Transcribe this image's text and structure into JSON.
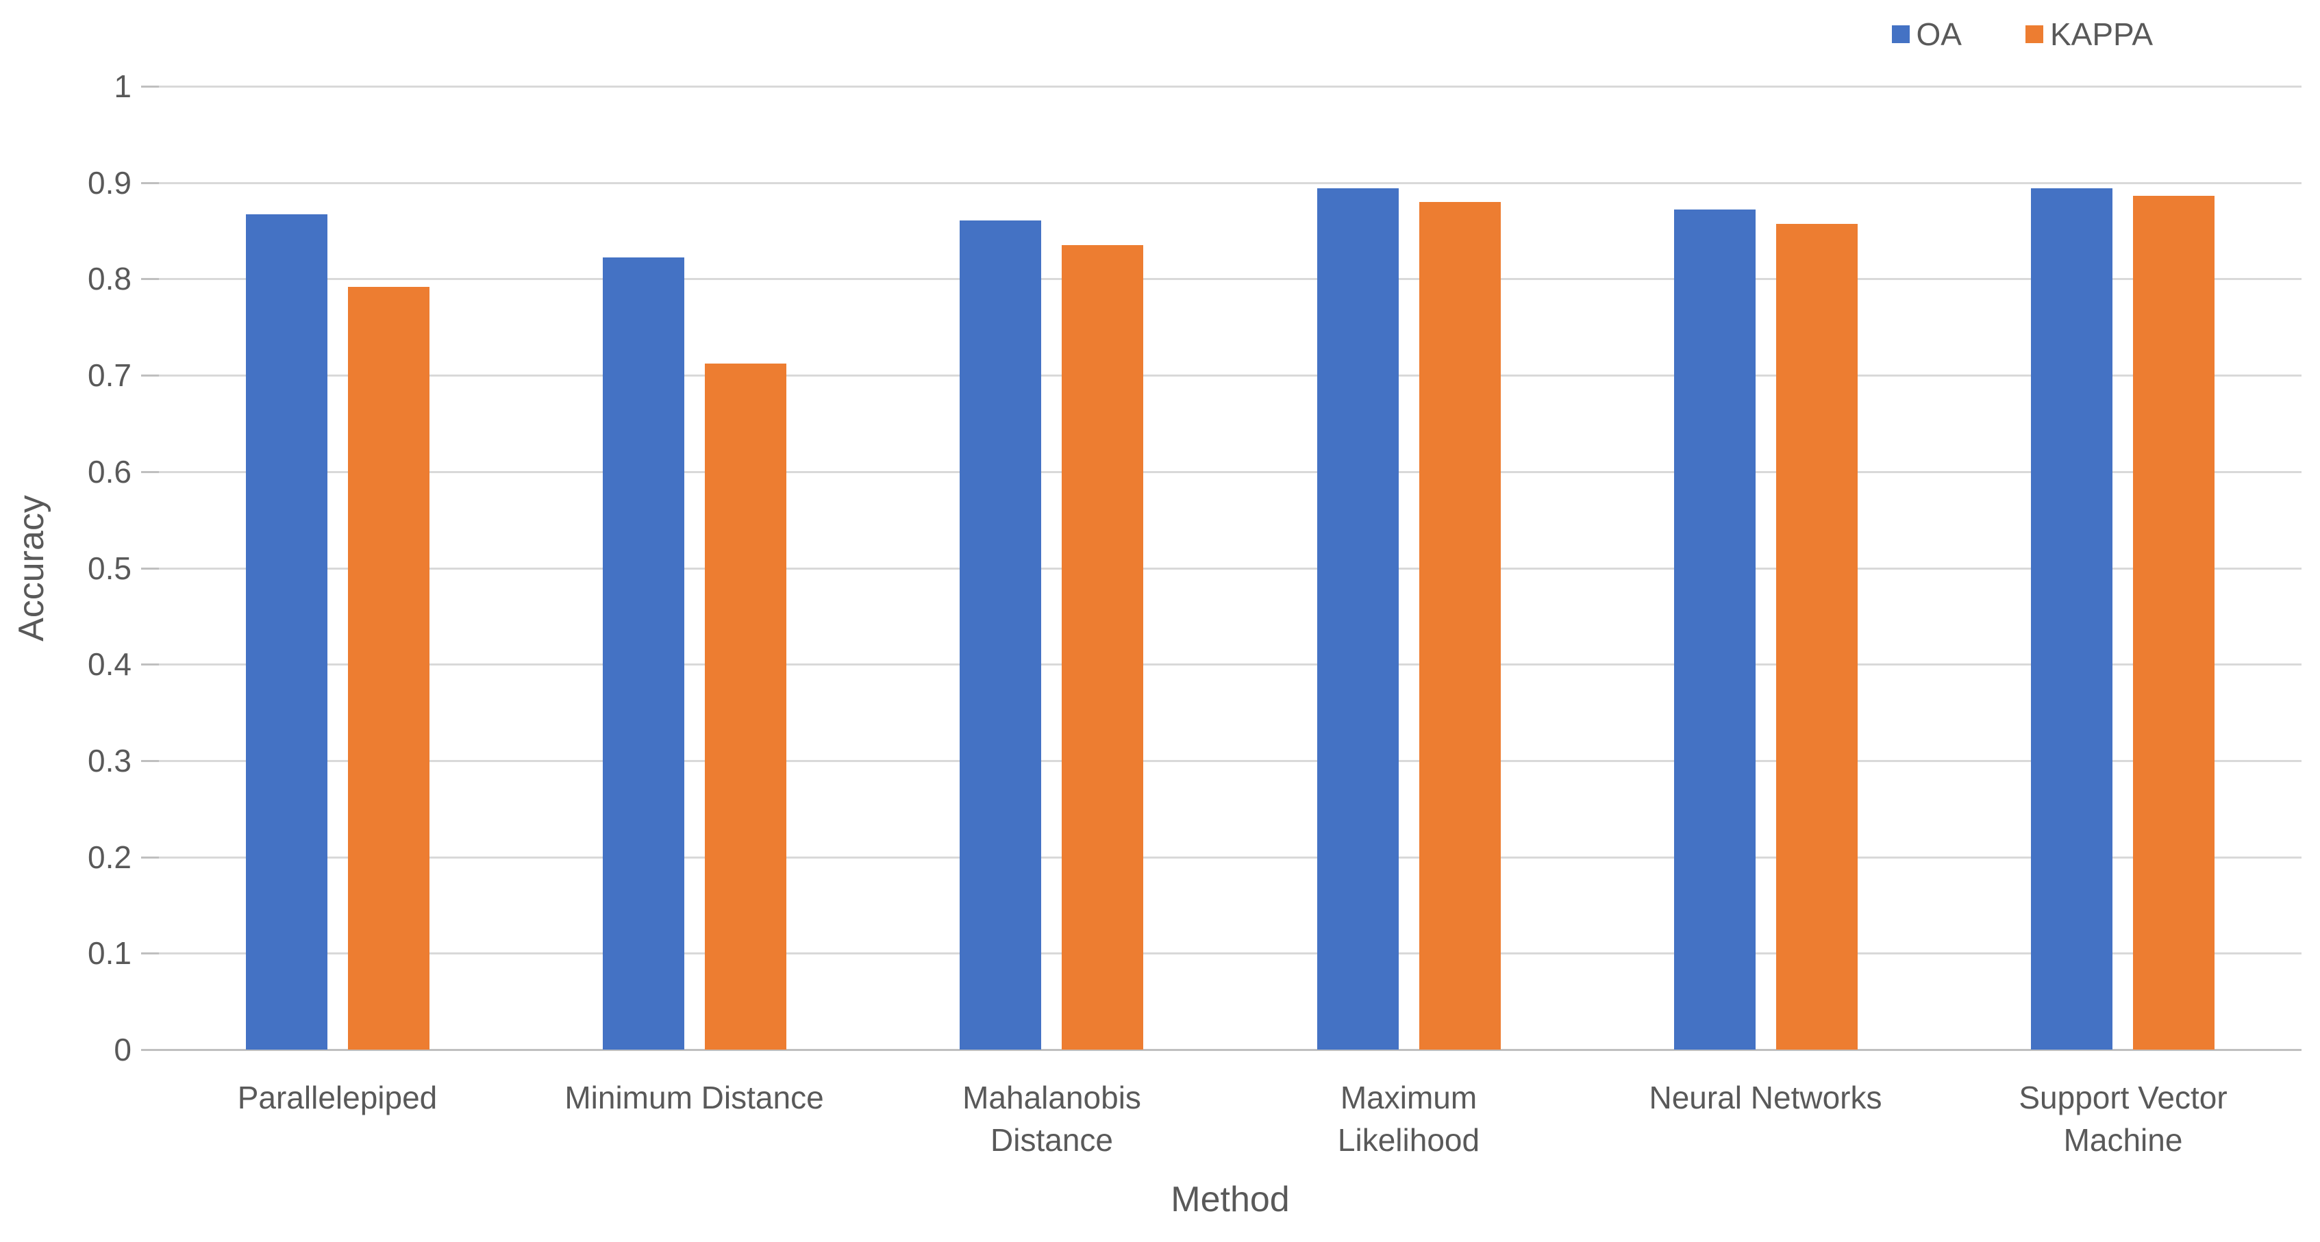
{
  "chart_data": {
    "type": "bar",
    "title": "",
    "categories": [
      "Parallelepiped",
      "Minimum Distance",
      "Mahalanobis Distance",
      "Maximum Likelihood",
      "Neural Networks",
      "Support Vector Machine"
    ],
    "category_lines": [
      [
        "Parallelepiped"
      ],
      [
        "Minimum Distance"
      ],
      [
        "Mahalanobis",
        "Distance"
      ],
      [
        "Maximum",
        "Likelihood"
      ],
      [
        "Neural Networks"
      ],
      [
        "Support Vector",
        "Machine"
      ]
    ],
    "series": [
      {
        "name": "OA",
        "color": "#4472C4",
        "values": [
          0.867,
          0.822,
          0.861,
          0.894,
          0.872,
          0.894
        ]
      },
      {
        "name": "KAPPA",
        "color": "#ED7D31",
        "values": [
          0.792,
          0.712,
          0.835,
          0.88,
          0.857,
          0.886
        ]
      }
    ],
    "xlabel": "Method",
    "ylabel": "Accuracy",
    "ylim": [
      0,
      1
    ],
    "ytick_step": 0.1,
    "yticks": [
      "1",
      "0.9",
      "0.8",
      "0.7",
      "0.6",
      "0.5",
      "0.4",
      "0.3",
      "0.2",
      "0.1",
      "0"
    ],
    "grid": true,
    "legend_position": "top-right"
  },
  "colors": {
    "series_oa": "#4472C4",
    "series_kappa": "#ED7D31",
    "gridline": "#D9D9D9",
    "axis_line": "#BFBFBF",
    "text": "#595959"
  }
}
